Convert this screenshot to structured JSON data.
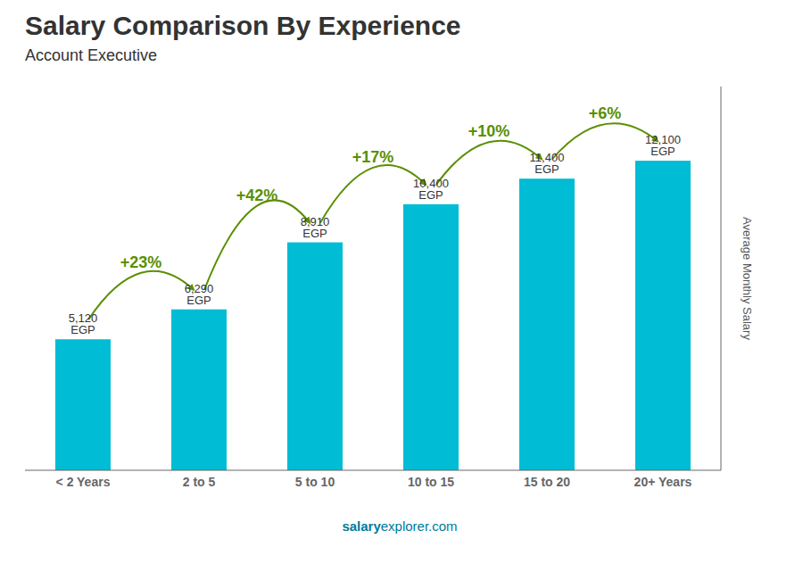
{
  "chart_data": {
    "type": "bar",
    "title": "Salary Comparison By Experience",
    "subtitle": "Account Executive",
    "ylabel": "Average Monthly Salary",
    "footer_bold": "salary",
    "footer_regular": "explorer.com",
    "categories": [
      "< 2 Years",
      "2 to 5",
      "5 to 10",
      "10 to 15",
      "15 to 20",
      "20+ Years"
    ],
    "values": [
      5120,
      6290,
      8910,
      10400,
      11400,
      12100
    ],
    "value_labels": [
      "5,120 EGP",
      "6,290 EGP",
      "8,910 EGP",
      "10,400 EGP",
      "11,400 EGP",
      "12,100 EGP"
    ],
    "data_labels": true,
    "pct_labels": [
      "+23%",
      "+42%",
      "+17%",
      "+10%",
      "+6%"
    ],
    "color": "#00bcd4",
    "ylim": [
      0,
      15000
    ],
    "yticks": [],
    "tick_labels": "x",
    "grid": false
  }
}
